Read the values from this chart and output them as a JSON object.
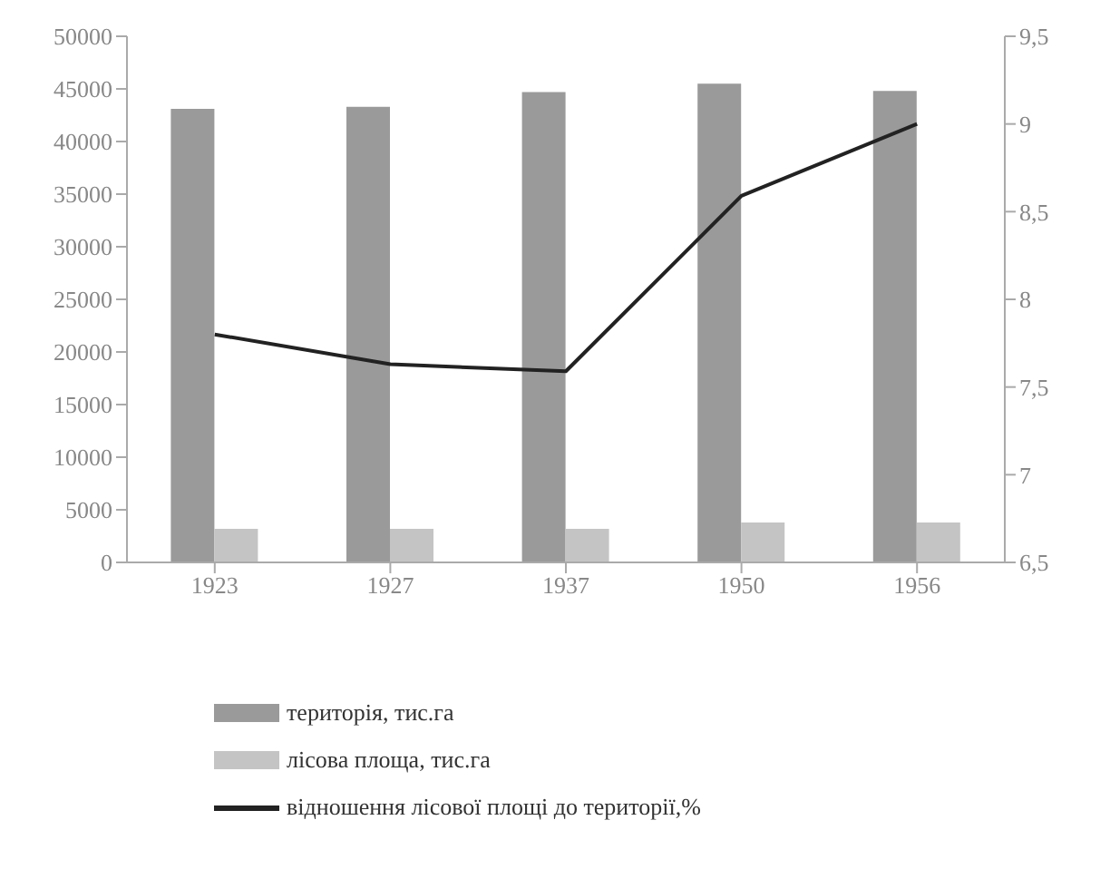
{
  "chart_data": {
    "type": "bar",
    "categories": [
      "1923",
      "1927",
      "1937",
      "1950",
      "1956"
    ],
    "series": [
      {
        "name": "територія, тис.га",
        "color": "#9a9a9a",
        "values": [
          43100,
          43300,
          44700,
          45500,
          44800
        ]
      },
      {
        "name": "лісова площа, тис.га",
        "color": "#c4c4c4",
        "values": [
          3200,
          3200,
          3200,
          3800,
          3800
        ]
      },
      {
        "name": "відношення лісової площі до території,%",
        "type": "line",
        "axis": "y2",
        "color": "#222222",
        "values": [
          7.8,
          7.63,
          7.59,
          8.59,
          9.0
        ]
      }
    ],
    "ylim": [
      0,
      50000
    ],
    "yticks": [
      0,
      5000,
      10000,
      15000,
      20000,
      25000,
      30000,
      35000,
      40000,
      45000,
      50000
    ],
    "y2lim": [
      6.5,
      9.5
    ],
    "y2ticks": [
      {
        "value": 6.5,
        "label": "6,5"
      },
      7,
      {
        "value": 7.5,
        "label": "7,5"
      },
      8,
      {
        "value": 8.5,
        "label": "8,5"
      },
      9,
      {
        "value": 9.5,
        "label": "9,5"
      }
    ],
    "grid": false,
    "legend": "bottom",
    "marker": "none",
    "line_style": "solid"
  }
}
